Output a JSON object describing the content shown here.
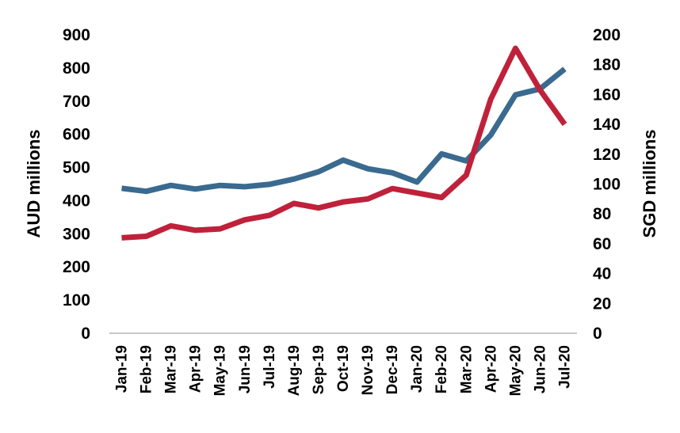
{
  "chart_data": {
    "type": "line",
    "categories": [
      "Jan-19",
      "Feb-19",
      "Mar-19",
      "Apr-19",
      "May-19",
      "Jun-19",
      "Jul-19",
      "Aug-19",
      "Sep-19",
      "Oct-19",
      "Nov-19",
      "Dec-19",
      "Jan-20",
      "Feb-20",
      "Mar-20",
      "Apr-20",
      "May-20",
      "Jun-20",
      "Jul-20"
    ],
    "series": [
      {
        "axis": "left",
        "color": "#3a6a8f",
        "values": [
          437,
          428,
          446,
          435,
          446,
          442,
          449,
          465,
          487,
          522,
          496,
          484,
          456,
          541,
          520,
          598,
          719,
          737,
          797
        ]
      },
      {
        "axis": "right",
        "color": "#c0213a",
        "values": [
          64,
          65,
          72,
          69,
          70,
          76,
          79,
          87,
          84,
          88,
          90,
          97,
          94,
          91,
          106,
          157,
          191,
          163,
          140
        ]
      }
    ],
    "ylabel": "AUD millions",
    "y2label": "SGD millions",
    "ylim": [
      0,
      900
    ],
    "y2lim": [
      0,
      200
    ],
    "yticks": [
      "0",
      "100",
      "200",
      "300",
      "400",
      "500",
      "600",
      "700",
      "800",
      "900"
    ],
    "y2ticks": [
      "0",
      "20",
      "40",
      "60",
      "80",
      "100",
      "120",
      "140",
      "160",
      "180",
      "200"
    ],
    "grid": false,
    "legend": "none"
  }
}
